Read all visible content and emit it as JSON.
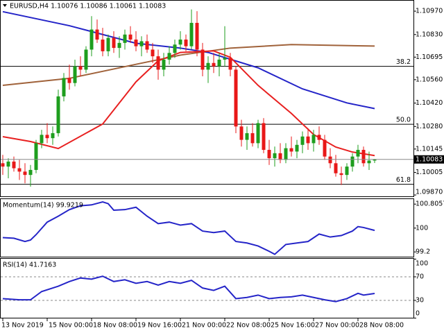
{
  "chart_data": [
    {
      "type": "candlestick",
      "title": "EURUSD,H4  1.10076 1.10086 1.10061 1.10083",
      "categories": [
        "13 Nov 2019",
        null,
        null,
        null,
        null,
        null,
        null,
        null,
        "15 Nov 00:00",
        null,
        null,
        null,
        null,
        null,
        null,
        null,
        "18 Nov 08:00",
        null,
        null,
        null,
        null,
        null,
        null,
        null,
        "19 Nov 16:00",
        null,
        null,
        null,
        null,
        null,
        null,
        null,
        "21 Nov 00:00",
        null,
        null,
        null,
        null,
        null,
        null,
        null,
        "22 Nov 08:00",
        null,
        null,
        null,
        null,
        null,
        null,
        null,
        "25 Nov 16:00",
        null,
        null,
        null,
        null,
        null,
        null,
        null,
        "27 Nov 00:00",
        null,
        null,
        null,
        null,
        null,
        null,
        null,
        "28 Nov 08:00",
        null,
        null,
        null
      ],
      "open": [
        1.1006,
        1.1004,
        1.1007,
        1.1003,
        1.1001,
        1.0999,
        1.1002,
        1.1018,
        1.1023,
        1.1021,
        1.1024,
        1.1046,
        1.1057,
        1.1054,
        1.1064,
        1.1062,
        1.1074,
        1.1086,
        1.108,
        1.1073,
        1.1081,
        1.1075,
        1.1078,
        1.1083,
        1.108,
        1.1076,
        1.1079,
        1.1074,
        1.107,
        1.1062,
        1.1068,
        1.1072,
        1.1077,
        1.108,
        1.1076,
        1.109,
        1.1074,
        1.1062,
        1.1066,
        1.1064,
        1.1068,
        1.1069,
        1.1062,
        1.1028,
        1.102,
        1.1024,
        1.1018,
        1.103,
        1.1014,
        1.1009,
        1.1012,
        1.1008,
        1.1015,
        1.1013,
        1.1017,
        1.1022,
        1.1018,
        1.1023,
        1.102,
        1.101,
        1.1006,
        1.1,
        1.0999,
        1.1004,
        1.101,
        1.1014,
        1.1006,
        1.10076
      ],
      "high": [
        1.1011,
        1.1009,
        1.101,
        1.1008,
        1.1006,
        1.1005,
        1.102,
        1.1026,
        1.103,
        1.1028,
        1.105,
        1.106,
        1.1065,
        1.1068,
        1.107,
        1.1076,
        1.1094,
        1.1092,
        1.1087,
        1.1083,
        1.1085,
        1.1082,
        1.1086,
        1.1088,
        1.1085,
        1.1082,
        1.1083,
        1.1078,
        1.1074,
        1.1072,
        1.1076,
        1.108,
        1.1085,
        1.1083,
        1.1098,
        1.1097,
        1.1078,
        1.107,
        1.1072,
        1.1072,
        1.1088,
        1.1072,
        1.1064,
        1.1032,
        1.1028,
        1.103,
        1.1032,
        1.1033,
        1.102,
        1.1016,
        1.1018,
        1.1018,
        1.1022,
        1.102,
        1.1025,
        1.1027,
        1.1026,
        1.1028,
        1.1023,
        1.1015,
        1.1011,
        1.1004,
        1.1006,
        1.1012,
        1.1017,
        1.1016,
        1.1013,
        1.10086
      ],
      "low": [
        1.0999,
        1.0997,
        1.1001,
        1.0996,
        1.0994,
        1.0992,
        1.1,
        1.1015,
        1.1018,
        1.1017,
        1.1022,
        1.1043,
        1.105,
        1.1052,
        1.1058,
        1.106,
        1.107,
        1.1078,
        1.107,
        1.107,
        1.1072,
        1.1069,
        1.1074,
        1.1078,
        1.1073,
        1.107,
        1.1072,
        1.1066,
        1.1056,
        1.1058,
        1.1065,
        1.1069,
        1.1074,
        1.1073,
        1.1074,
        1.107,
        1.1058,
        1.1054,
        1.106,
        1.1058,
        1.1064,
        1.1058,
        1.1024,
        1.1016,
        1.1014,
        1.1016,
        1.1015,
        1.1012,
        1.1005,
        1.1004,
        1.1006,
        1.1006,
        1.101,
        1.1009,
        1.1012,
        1.1014,
        1.1013,
        1.1017,
        1.1008,
        1.1003,
        1.0998,
        1.0993,
        1.0996,
        1.1001,
        1.1006,
        1.1004,
        1.1002,
        1.10061
      ],
      "close": [
        1.1004,
        1.1007,
        1.1003,
        1.1001,
        1.0999,
        1.1002,
        1.1018,
        1.1023,
        1.1021,
        1.1024,
        1.1046,
        1.1057,
        1.1054,
        1.1064,
        1.1062,
        1.1074,
        1.1086,
        1.108,
        1.1073,
        1.1081,
        1.1075,
        1.1078,
        1.1083,
        1.108,
        1.1076,
        1.1079,
        1.1074,
        1.107,
        1.1062,
        1.1068,
        1.1072,
        1.1077,
        1.108,
        1.1076,
        1.109,
        1.1074,
        1.1062,
        1.1066,
        1.1064,
        1.1068,
        1.1069,
        1.1062,
        1.1028,
        1.102,
        1.1024,
        1.1018,
        1.103,
        1.1014,
        1.1009,
        1.1012,
        1.1008,
        1.1015,
        1.1013,
        1.1017,
        1.1022,
        1.1018,
        1.1023,
        1.102,
        1.101,
        1.1006,
        1.1,
        1.0999,
        1.1004,
        1.101,
        1.1014,
        1.1006,
        1.10076,
        1.10083
      ],
      "last": 1.10083,
      "up_color": "#1e9e1e",
      "down_color": "#e81818",
      "ylim": [
        1.09862,
        1.11016
      ],
      "yticks": [
        {
          "value": 1.1097,
          "label": "1.10970"
        },
        {
          "value": 1.1083,
          "label": "1.10830"
        },
        {
          "value": 1.10695,
          "label": "1.10695"
        },
        {
          "value": 1.1056,
          "label": "1.10560"
        },
        {
          "value": 1.1042,
          "label": "1.10420"
        },
        {
          "value": 1.1028,
          "label": "1.10280"
        },
        {
          "value": 1.10145,
          "label": "1.10145"
        },
        {
          "value": 1.10005,
          "label": "1.10005"
        },
        {
          "value": 1.0987,
          "label": "1.09870"
        }
      ],
      "levels": [
        {
          "price": 1.1064,
          "label": "38.2"
        },
        {
          "price": 1.10293,
          "label": "50.0"
        },
        {
          "price": 1.09934,
          "label": "61.8"
        }
      ],
      "series": [
        {
          "color": "#2424c8",
          "x": [
            0,
            12,
            24,
            32,
            37,
            46,
            54,
            62,
            67
          ],
          "values": [
            1.10967,
            1.10883,
            1.10778,
            1.10749,
            1.10723,
            1.10631,
            1.10505,
            1.10421,
            1.10387
          ]
        },
        {
          "color": "#a0623a",
          "x": [
            0,
            12,
            24,
            32,
            41,
            52,
            67
          ],
          "values": [
            1.10526,
            1.10568,
            1.10652,
            1.10707,
            1.10749,
            1.1077,
            1.10761
          ]
        },
        {
          "color": "#e82020",
          "x": [
            0,
            5,
            10,
            18,
            24,
            28,
            32,
            38,
            41,
            46,
            52,
            56,
            60,
            63,
            67
          ],
          "values": [
            1.10219,
            1.1019,
            1.10148,
            1.10295,
            1.10547,
            1.10673,
            1.10723,
            1.10732,
            1.10694,
            1.10526,
            1.10358,
            1.10232,
            1.10157,
            1.10127,
            1.10106
          ]
        }
      ]
    },
    {
      "type": "line",
      "title": "Momentum(14) 99.9219",
      "ylim": [
        99.04,
        100.95
      ],
      "yticks": [
        99.2,
        100,
        100.8057
      ],
      "grid": false,
      "series": [
        {
          "color": "#2424c8",
          "x": [
            0,
            2,
            4,
            5,
            6,
            8,
            10,
            12,
            14,
            16,
            18,
            19,
            20,
            22,
            24,
            26,
            28,
            30,
            32,
            34,
            36,
            38,
            40,
            42,
            44,
            46,
            48,
            49,
            51,
            53,
            55,
            57,
            59,
            61,
            63,
            64,
            65,
            67
          ],
          "values": [
            99.68,
            99.66,
            99.55,
            99.6,
            99.78,
            100.2,
            100.4,
            100.62,
            100.75,
            100.78,
            100.88,
            100.82,
            100.6,
            100.62,
            100.7,
            100.4,
            100.15,
            100.2,
            100.1,
            100.15,
            99.9,
            99.85,
            99.9,
            99.55,
            99.5,
            99.4,
            99.22,
            99.12,
            99.45,
            99.5,
            99.55,
            99.8,
            99.7,
            99.75,
            99.9,
            100.05,
            100.02,
            99.9219
          ]
        }
      ]
    },
    {
      "type": "line",
      "title": "RSI(14) 41.7163",
      "ylim": [
        0,
        100
      ],
      "yticks": [
        0,
        30,
        70,
        100
      ],
      "grid": true,
      "series": [
        {
          "color": "#2424c8",
          "x": [
            0,
            3,
            5,
            7,
            10,
            12,
            14,
            16,
            18,
            20,
            22,
            24,
            26,
            28,
            30,
            32,
            34,
            36,
            38,
            40,
            42,
            44,
            46,
            48,
            50,
            52,
            54,
            56,
            58,
            60,
            62,
            64,
            65,
            67
          ],
          "values": [
            33,
            31,
            31,
            45,
            54,
            62,
            68,
            66,
            71,
            62,
            65,
            59,
            62,
            56,
            62,
            59,
            64,
            51,
            47,
            54,
            33,
            35,
            39,
            33,
            35,
            36,
            39,
            35,
            31,
            28,
            33,
            42,
            39,
            41.7163
          ]
        }
      ]
    }
  ]
}
